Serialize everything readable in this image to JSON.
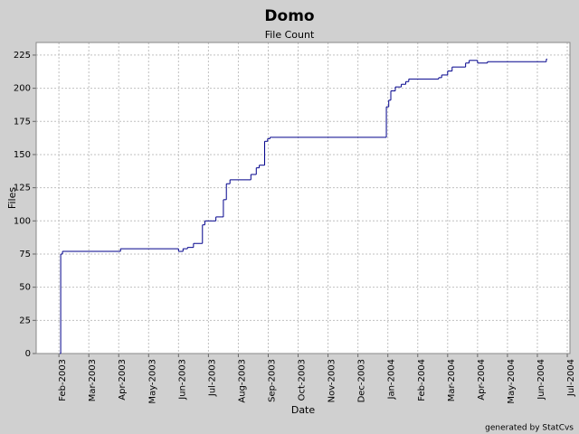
{
  "chart_data": {
    "type": "step",
    "title": "Domo",
    "subtitle": "File Count",
    "x_label": "Date",
    "y_label": "Files",
    "footer": "generated by StatCvs",
    "series": [
      {
        "name": "Files",
        "color": "#00008b",
        "x": [
          1.03,
          1.06,
          1.12,
          3.06,
          5.0,
          5.15,
          5.3,
          5.5,
          5.8,
          5.88,
          6.25,
          6.5,
          6.6,
          6.72,
          7.42,
          7.6,
          7.7,
          7.88,
          7.98,
          8.06,
          11.95,
          12.03,
          12.1,
          12.25,
          12.45,
          12.6,
          12.7,
          13.7,
          13.8,
          14.0,
          14.15,
          14.6,
          14.72,
          15.0,
          15.33,
          17.3
        ],
        "values": [
          0,
          75,
          77,
          79,
          77,
          79,
          80,
          83,
          97,
          100,
          103,
          116,
          128,
          131,
          135,
          140,
          142,
          160,
          162,
          163,
          186,
          191,
          198,
          201,
          203,
          205,
          207,
          208,
          210,
          213,
          216,
          219,
          221,
          219,
          220,
          222
        ]
      }
    ],
    "xlim": [
      0.24,
      18.09
    ],
    "xticks": [
      {
        "value": 1,
        "label": "Feb-2003"
      },
      {
        "value": 2,
        "label": "Mar-2003"
      },
      {
        "value": 3,
        "label": "Apr-2003"
      },
      {
        "value": 4,
        "label": "May-2003"
      },
      {
        "value": 5,
        "label": "Jun-2003"
      },
      {
        "value": 6,
        "label": "Jul-2003"
      },
      {
        "value": 7,
        "label": "Aug-2003"
      },
      {
        "value": 8,
        "label": "Sep-2003"
      },
      {
        "value": 9,
        "label": "Oct-2003"
      },
      {
        "value": 10,
        "label": "Nov-2003"
      },
      {
        "value": 11,
        "label": "Dec-2003"
      },
      {
        "value": 12,
        "label": "Jan-2004"
      },
      {
        "value": 13,
        "label": "Feb-2004"
      },
      {
        "value": 14,
        "label": "Mar-2004"
      },
      {
        "value": 15,
        "label": "Apr-2004"
      },
      {
        "value": 16,
        "label": "May-2004"
      },
      {
        "value": 17,
        "label": "Jun-2004"
      },
      {
        "value": 18,
        "label": "Jul-2004"
      }
    ],
    "ylim": [
      0,
      234.5
    ],
    "yticks": [
      0,
      25,
      50,
      75,
      100,
      125,
      150,
      175,
      200,
      225
    ],
    "grid": true
  }
}
